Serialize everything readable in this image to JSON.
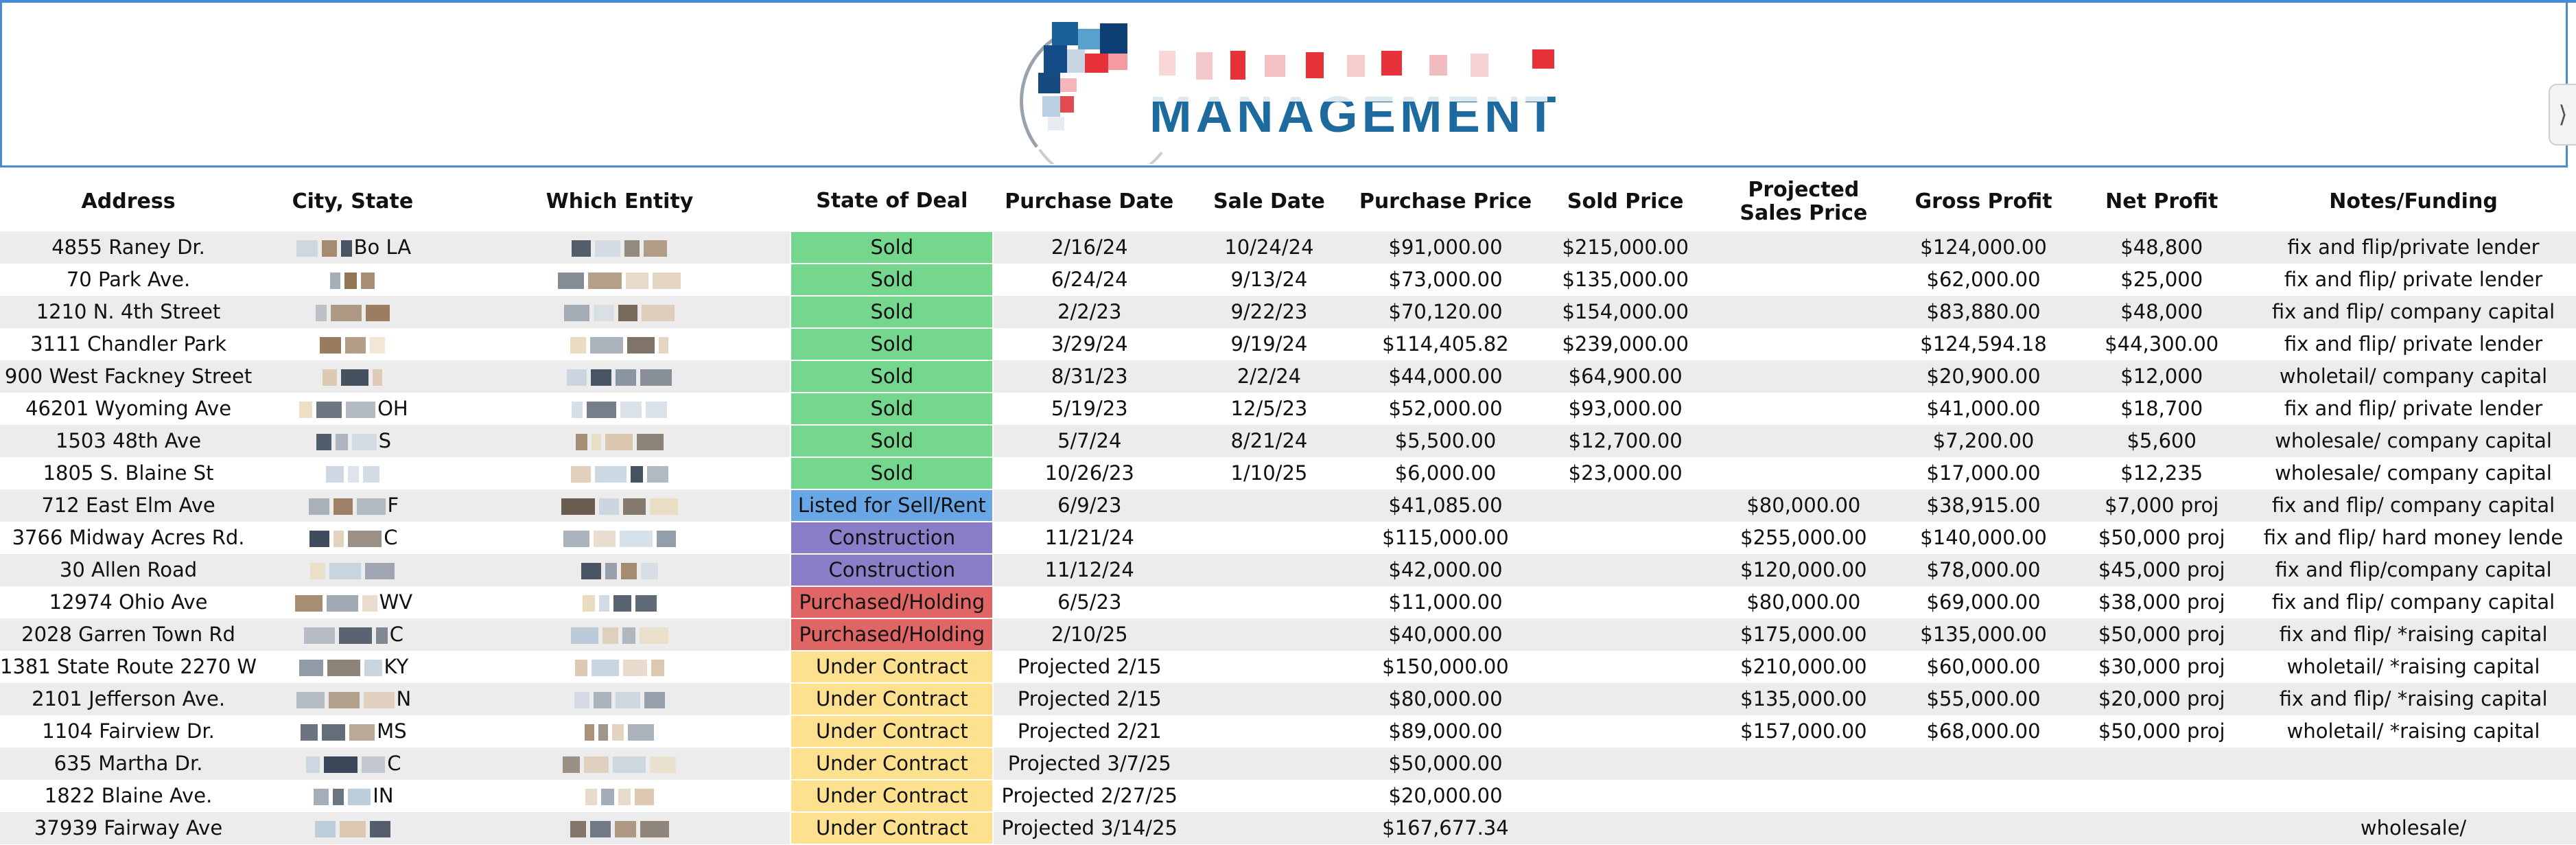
{
  "colors": {
    "accent": "#4a8ad4",
    "sold": "#75d68e",
    "listed": "#69a6e6",
    "construction": "#8c7dc9",
    "purchased": "#e06666",
    "under_contract": "#fde18f"
  },
  "header": {
    "logo_text": "MANAGEMENT",
    "side_tab_icon": "collapse-icon"
  },
  "columns": [
    "Address",
    "City, State",
    "Which Entity",
    "State of Deal",
    "Purchase Date",
    "Sale Date",
    "Purchase Price",
    "Sold Price",
    "Projected\nSales Price",
    "Gross Profit",
    "Net Profit",
    "Notes/Funding"
  ],
  "rows": [
    {
      "address": "4855 Raney Dr.",
      "city": "Bo     LA",
      "entity": "",
      "status": "Sold",
      "status_type": "sold",
      "purchase_date": "2/16/24",
      "sale_date": "10/24/24",
      "purchase_price": "$91,000.00",
      "sold_price": "$215,000.00",
      "projected": "",
      "gross": "$124,000.00",
      "net": "$48,800",
      "notes": "fix and flip/private lender"
    },
    {
      "address": "70 Park Ave.",
      "city": "",
      "entity": "",
      "status": "Sold",
      "status_type": "sold",
      "purchase_date": "6/24/24",
      "sale_date": "9/13/24",
      "purchase_price": "$73,000.00",
      "sold_price": "$135,000.00",
      "projected": "",
      "gross": "$62,000.00",
      "net": "$25,000",
      "notes": "fix and flip/ private lender"
    },
    {
      "address": "1210 N. 4th Street",
      "city": "",
      "entity": "",
      "status": "Sold",
      "status_type": "sold",
      "purchase_date": "2/2/23",
      "sale_date": "9/22/23",
      "purchase_price": "$70,120.00",
      "sold_price": "$154,000.00",
      "projected": "",
      "gross": "$83,880.00",
      "net": "$48,000",
      "notes": "fix and flip/ company capital"
    },
    {
      "address": "3111 Chandler Park",
      "city": "",
      "entity": "",
      "status": "Sold",
      "status_type": "sold",
      "purchase_date": "3/29/24",
      "sale_date": "9/19/24",
      "purchase_price": "$114,405.82",
      "sold_price": "$239,000.00",
      "projected": "",
      "gross": "$124,594.18",
      "net": "$44,300.00",
      "notes": "fix and flip/ private lender"
    },
    {
      "address": "900 West Fackney Street",
      "city": "",
      "entity": "",
      "status": "Sold",
      "status_type": "sold",
      "purchase_date": "8/31/23",
      "sale_date": "2/2/24",
      "purchase_price": "$44,000.00",
      "sold_price": "$64,900.00",
      "projected": "",
      "gross": "$20,900.00",
      "net": "$12,000",
      "notes": "wholetail/ company capital"
    },
    {
      "address": "46201 Wyoming Ave",
      "city": "OH",
      "entity": "",
      "status": "Sold",
      "status_type": "sold",
      "purchase_date": "5/19/23",
      "sale_date": "12/5/23",
      "purchase_price": "$52,000.00",
      "sold_price": "$93,000.00",
      "projected": "",
      "gross": "$41,000.00",
      "net": "$18,700",
      "notes": "fix and flip/ private lender"
    },
    {
      "address": "1503 48th Ave",
      "city": "S",
      "entity": "",
      "status": "Sold",
      "status_type": "sold",
      "purchase_date": "5/7/24",
      "sale_date": "8/21/24",
      "purchase_price": "$5,500.00",
      "sold_price": "$12,700.00",
      "projected": "",
      "gross": "$7,200.00",
      "net": "$5,600",
      "notes": "wholesale/ company capital"
    },
    {
      "address": "1805 S. Blaine St",
      "city": "",
      "entity": "",
      "status": "Sold",
      "status_type": "sold",
      "purchase_date": "10/26/23",
      "sale_date": "1/10/25",
      "purchase_price": "$6,000.00",
      "sold_price": "$23,000.00",
      "projected": "",
      "gross": "$17,000.00",
      "net": "$12,235",
      "notes": "wholesale/ company capital"
    },
    {
      "address": "712 East Elm Ave",
      "city": "F",
      "entity": "",
      "status": "Listed for Sell/Rent",
      "status_type": "listed",
      "purchase_date": "6/9/23",
      "sale_date": "",
      "purchase_price": "$41,085.00",
      "sold_price": "",
      "projected": "$80,000.00",
      "gross": "$38,915.00",
      "net": "$7,000 proj",
      "notes": "fix and flip/ company capital"
    },
    {
      "address": "3766 Midway Acres Rd.",
      "city": "C",
      "entity": "",
      "status": "Construction",
      "status_type": "construction",
      "purchase_date": "11/21/24",
      "sale_date": "",
      "purchase_price": "$115,000.00",
      "sold_price": "",
      "projected": "$255,000.00",
      "gross": "$140,000.00",
      "net": "$50,000 proj",
      "notes": "fix and flip/ hard money lende"
    },
    {
      "address": "30 Allen Road",
      "city": "",
      "entity": "",
      "status": "Construction",
      "status_type": "construction",
      "purchase_date": "11/12/24",
      "sale_date": "",
      "purchase_price": "$42,000.00",
      "sold_price": "",
      "projected": "$120,000.00",
      "gross": "$78,000.00",
      "net": "$45,000 proj",
      "notes": "fix and flip/company capital"
    },
    {
      "address": "12974 Ohio Ave",
      "city": "WV",
      "entity": "",
      "status": "Purchased/Holding",
      "status_type": "purchased",
      "purchase_date": "6/5/23",
      "sale_date": "",
      "purchase_price": "$11,000.00",
      "sold_price": "",
      "projected": "$80,000.00",
      "gross": "$69,000.00",
      "net": "$38,000 proj",
      "notes": "fix and flip/ company capital"
    },
    {
      "address": "2028 Garren Town Rd",
      "city": "C",
      "entity": "",
      "status": "Purchased/Holding",
      "status_type": "purchased",
      "purchase_date": "2/10/25",
      "sale_date": "",
      "purchase_price": "$40,000.00",
      "sold_price": "",
      "projected": "$175,000.00",
      "gross": "$135,000.00",
      "net": "$50,000 proj",
      "notes": "fix and flip/ *raising capital"
    },
    {
      "address": "1381 State Route 2270 W",
      "city": "KY",
      "entity": "",
      "status": "Under Contract",
      "status_type": "under_contract",
      "purchase_date": "Projected 2/15",
      "sale_date": "",
      "purchase_price": "$150,000.00",
      "sold_price": "",
      "projected": "$210,000.00",
      "gross": "$60,000.00",
      "net": "$30,000 proj",
      "notes": "wholetail/ *raising capital"
    },
    {
      "address": "2101 Jefferson Ave.",
      "city": "N",
      "entity": "",
      "status": "Under Contract",
      "status_type": "under_contract",
      "purchase_date": "Projected 2/15",
      "sale_date": "",
      "purchase_price": "$80,000.00",
      "sold_price": "",
      "projected": "$135,000.00",
      "gross": "$55,000.00",
      "net": "$20,000 proj",
      "notes": "fix and flip/ *raising capital"
    },
    {
      "address": "1104 Fairview Dr.",
      "city": "MS",
      "entity": "",
      "status": "Under Contract",
      "status_type": "under_contract",
      "purchase_date": "Projected 2/21",
      "sale_date": "",
      "purchase_price": "$89,000.00",
      "sold_price": "",
      "projected": "$157,000.00",
      "gross": "$68,000.00",
      "net": "$50,000 proj",
      "notes": "wholetail/ *raising capital"
    },
    {
      "address": "635 Martha Dr.",
      "city": "C",
      "entity": "",
      "status": "Under Contract",
      "status_type": "under_contract",
      "purchase_date": "Projected 3/7/25",
      "sale_date": "",
      "purchase_price": "$50,000.00",
      "sold_price": "",
      "projected": "",
      "gross": "",
      "net": "",
      "notes": ""
    },
    {
      "address": "1822 Blaine Ave.",
      "city": "IN",
      "entity": "",
      "status": "Under Contract",
      "status_type": "under_contract",
      "purchase_date": "Projected 2/27/25",
      "sale_date": "",
      "purchase_price": "$20,000.00",
      "sold_price": "",
      "projected": "",
      "gross": "",
      "net": "",
      "notes": ""
    },
    {
      "address": "37939 Fairway Ave",
      "city": "",
      "entity": "",
      "status": "Under Contract",
      "status_type": "under_contract",
      "purchase_date": "Projected 3/14/25",
      "sale_date": "",
      "purchase_price": "$167,677.34",
      "sold_price": "",
      "projected": "",
      "gross": "",
      "net": "",
      "notes": "wholesale/"
    }
  ]
}
